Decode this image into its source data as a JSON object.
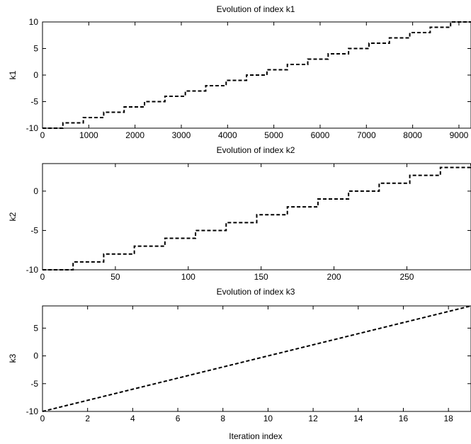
{
  "chart_data": [
    {
      "type": "line",
      "title": "Evolution of index k1",
      "xlabel": "",
      "ylabel": "k1",
      "xlim": [
        0,
        9261
      ],
      "ylim": [
        -10,
        10
      ],
      "xticks": [
        0,
        1000,
        2000,
        3000,
        4000,
        5000,
        6000,
        7000,
        8000,
        9000
      ],
      "yticks": [
        -10,
        -5,
        0,
        5,
        10
      ],
      "grid": false,
      "style": "step",
      "line_style": "dashed",
      "color": "#000000",
      "step_x": [
        0,
        441,
        882,
        1323,
        1764,
        2205,
        2646,
        3087,
        3528,
        3969,
        4410,
        4851,
        5292,
        5733,
        6174,
        6615,
        7056,
        7497,
        7938,
        8379,
        8820,
        9261
      ],
      "step_y": [
        -10,
        -9,
        -8,
        -7,
        -6,
        -5,
        -4,
        -3,
        -2,
        -1,
        0,
        1,
        2,
        3,
        4,
        5,
        6,
        7,
        8,
        9,
        10,
        10
      ]
    },
    {
      "type": "line",
      "title": "Evolution of index k2",
      "xlabel": "",
      "ylabel": "k2",
      "xlim": [
        0,
        294
      ],
      "ylim": [
        -10,
        3.5
      ],
      "xticks": [
        0,
        50,
        100,
        150,
        200,
        250
      ],
      "yticks": [
        -10,
        -5,
        0
      ],
      "grid": false,
      "style": "step",
      "line_style": "dashed",
      "color": "#000000",
      "step_x": [
        0,
        21,
        42,
        63,
        84,
        105,
        126,
        147,
        168,
        189,
        210,
        231,
        252,
        273,
        294
      ],
      "step_y": [
        -10,
        -9,
        -8,
        -7,
        -6,
        -5,
        -4,
        -3,
        -2,
        -1,
        0,
        1,
        2,
        3,
        3.5
      ]
    },
    {
      "type": "line",
      "title": "Evolution of index k3",
      "xlabel": "Iteration index",
      "ylabel": "k3",
      "xlim": [
        0,
        19
      ],
      "ylim": [
        -10,
        9
      ],
      "xticks": [
        0,
        2,
        4,
        6,
        8,
        10,
        12,
        14,
        16,
        18
      ],
      "yticks": [
        -10,
        -5,
        0,
        5
      ],
      "grid": false,
      "style": "line",
      "line_style": "dashed",
      "color": "#000000",
      "x": [
        0,
        1,
        2,
        3,
        4,
        5,
        6,
        7,
        8,
        9,
        10,
        11,
        12,
        13,
        14,
        15,
        16,
        17,
        18,
        19
      ],
      "y": [
        -10,
        -9,
        -8,
        -7,
        -6,
        -5,
        -4,
        -3,
        -2,
        -1,
        0,
        1,
        2,
        3,
        4,
        5,
        6,
        7,
        8,
        9
      ]
    }
  ]
}
